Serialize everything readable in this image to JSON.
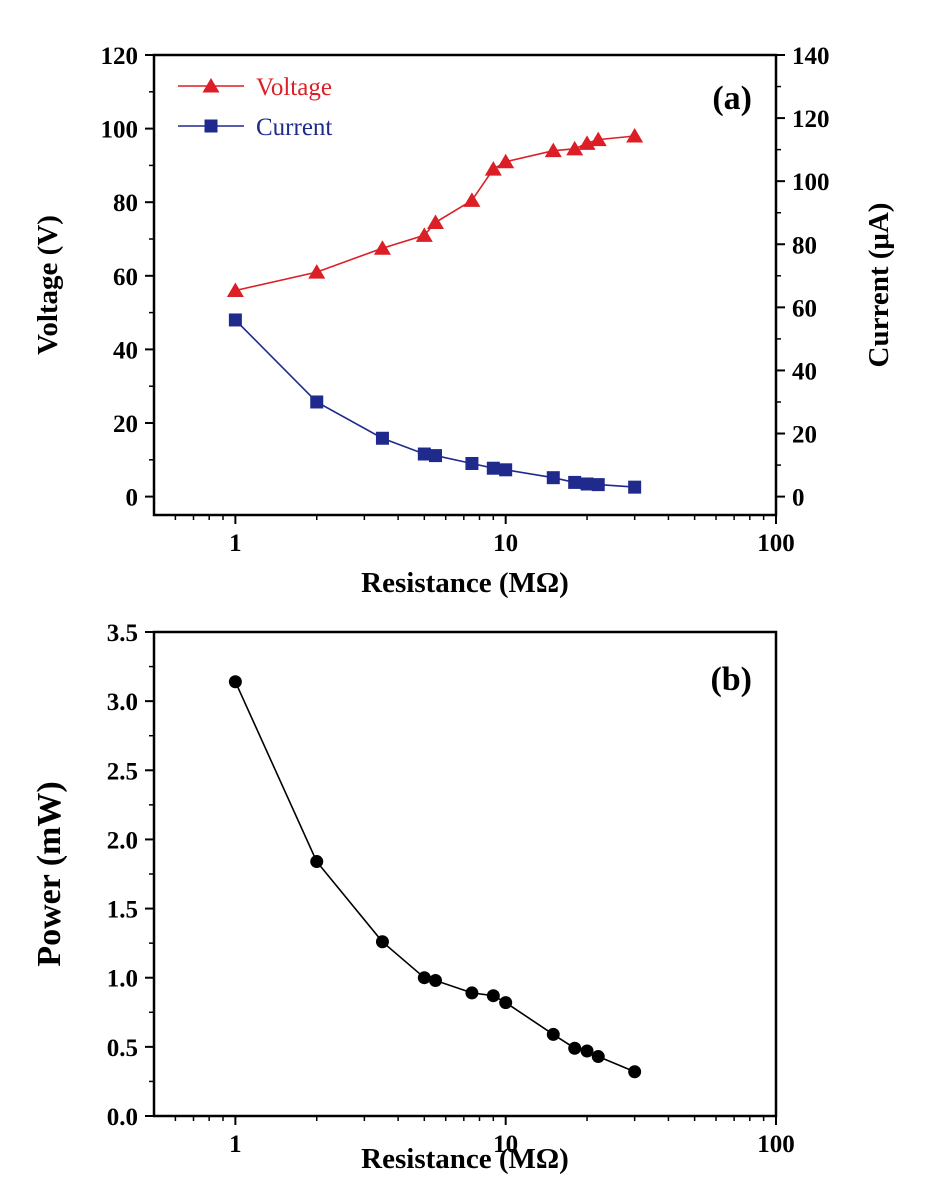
{
  "chart_data": [
    {
      "type": "line",
      "panel_label": "(a)",
      "xlabel": "Resistance (MΩ)",
      "ylabel": "Voltage (V)",
      "ylabel_right": "Current (μA)",
      "xscale": "log",
      "xlim": [
        0.5,
        100
      ],
      "ylim": [
        -5,
        120
      ],
      "ylim_right": [
        -5.83,
        140
      ],
      "x_ticks": [
        1,
        10,
        100
      ],
      "x_tick_labels": [
        "1",
        "10",
        "100"
      ],
      "y_ticks": [
        0,
        20,
        40,
        60,
        80,
        100,
        120
      ],
      "y_tick_labels": [
        "0",
        "20",
        "40",
        "60",
        "80",
        "100",
        "120"
      ],
      "y_right_ticks": [
        0,
        20,
        40,
        60,
        80,
        100,
        120,
        140
      ],
      "y_right_tick_labels": [
        "0",
        "20",
        "40",
        "60",
        "80",
        "100",
        "120",
        "140"
      ],
      "legend_position": "top-left",
      "x": [
        1,
        2,
        3.5,
        5,
        5.5,
        7.5,
        9,
        10,
        15,
        18,
        20,
        22,
        30
      ],
      "series": [
        {
          "name": "Voltage",
          "axis": "left",
          "marker": "triangle",
          "color": "#dc1f26",
          "values": [
            56,
            61,
            67.5,
            71,
            74.5,
            80.5,
            89,
            91,
            94,
            94.5,
            96,
            97,
            98
          ]
        },
        {
          "name": "Current",
          "axis": "right",
          "marker": "square",
          "color": "#1f2a8c",
          "values": [
            56,
            30,
            18.5,
            13.5,
            13,
            10.5,
            9,
            8.5,
            6,
            4.5,
            4,
            3.8,
            3
          ]
        }
      ]
    },
    {
      "type": "line",
      "panel_label": "(b)",
      "xlabel": "Resistance (MΩ)",
      "ylabel": "Power (mW)",
      "xscale": "log",
      "xlim": [
        0.5,
        100
      ],
      "ylim": [
        0,
        3.5
      ],
      "x_ticks": [
        1,
        10,
        100
      ],
      "x_tick_labels": [
        "1",
        "10",
        "100"
      ],
      "y_ticks": [
        0,
        0.5,
        1,
        1.5,
        2,
        2.5,
        3,
        3.5
      ],
      "y_tick_labels": [
        "0.0",
        "0.5",
        "1.0",
        "1.5",
        "2.0",
        "2.5",
        "3.0",
        "3.5"
      ],
      "x": [
        1,
        2,
        3.5,
        5,
        5.5,
        7.5,
        9,
        10,
        15,
        18,
        20,
        22,
        30
      ],
      "series": [
        {
          "name": "Power",
          "axis": "left",
          "marker": "circle",
          "color": "#000000",
          "values": [
            3.14,
            1.84,
            1.26,
            1.0,
            0.98,
            0.89,
            0.87,
            0.82,
            0.59,
            0.49,
            0.47,
            0.43,
            0.32
          ]
        }
      ]
    }
  ]
}
